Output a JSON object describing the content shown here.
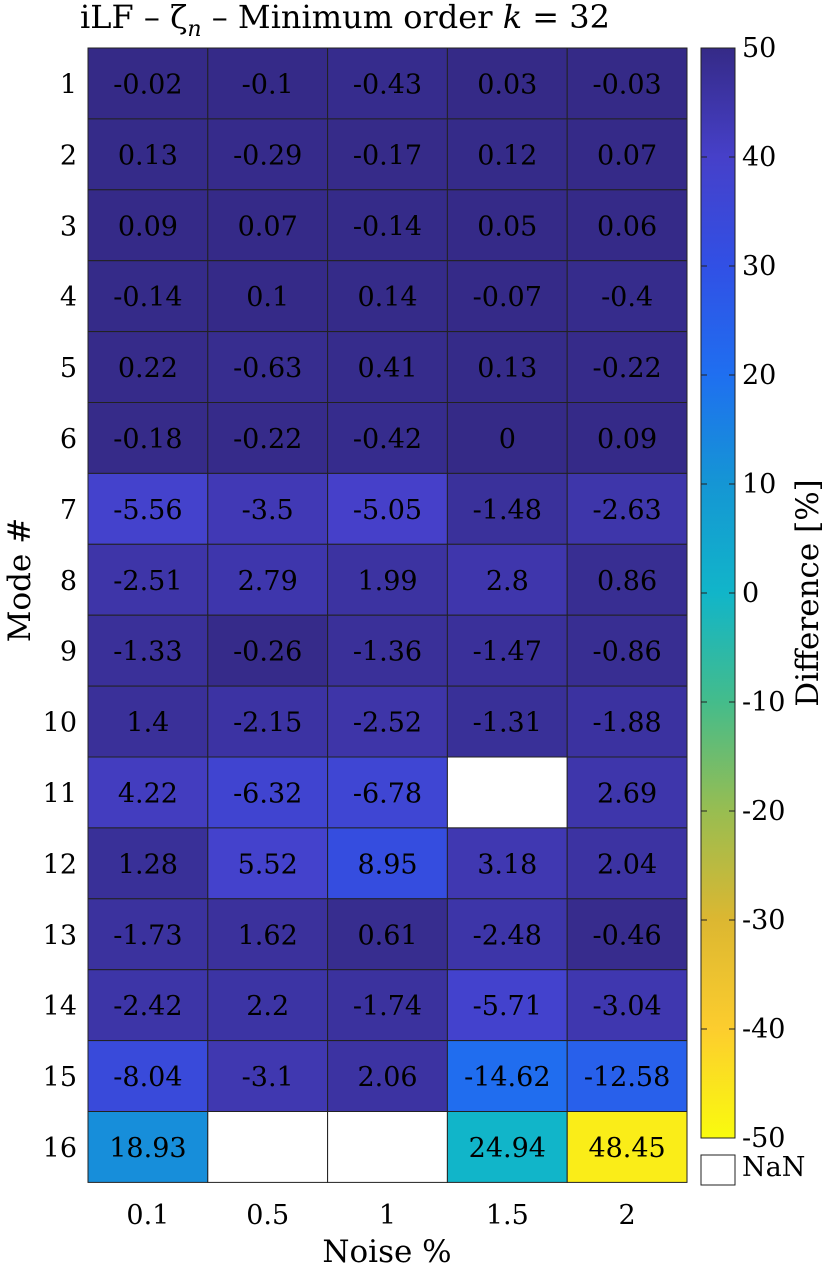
{
  "chart_data": {
    "type": "heatmap",
    "title": "iLF – ζ",
    "title_subscript": "n",
    "title_suffix": " – Minimum order ",
    "title_var": "k",
    "title_tail": " = 32",
    "xlabel": "Noise %",
    "ylabel": "Mode #",
    "x_categories": [
      "0.1",
      "0.5",
      "1",
      "1.5",
      "2"
    ],
    "y_categories": [
      "1",
      "2",
      "3",
      "4",
      "5",
      "6",
      "7",
      "8",
      "9",
      "10",
      "11",
      "12",
      "13",
      "14",
      "15",
      "16"
    ],
    "values": [
      [
        -0.02,
        -0.1,
        -0.43,
        0.03,
        -0.03
      ],
      [
        0.13,
        -0.29,
        -0.17,
        0.12,
        0.07
      ],
      [
        0.09,
        0.07,
        -0.14,
        0.05,
        0.06
      ],
      [
        -0.14,
        0.1,
        0.14,
        -0.07,
        -0.4
      ],
      [
        0.22,
        -0.63,
        0.41,
        0.13,
        -0.22
      ],
      [
        -0.18,
        -0.22,
        -0.42,
        0,
        0.09
      ],
      [
        -5.56,
        -3.5,
        -5.05,
        -1.48,
        -2.63
      ],
      [
        -2.51,
        2.79,
        1.99,
        2.8,
        0.86
      ],
      [
        -1.33,
        -0.26,
        -1.36,
        -1.47,
        -0.86
      ],
      [
        1.4,
        -2.15,
        -2.52,
        -1.31,
        -1.88
      ],
      [
        4.22,
        -6.32,
        -6.78,
        null,
        2.69
      ],
      [
        1.28,
        5.52,
        8.95,
        3.18,
        2.04
      ],
      [
        -1.73,
        1.62,
        0.61,
        -2.48,
        -0.46
      ],
      [
        -2.42,
        2.2,
        -1.74,
        -5.71,
        -3.04
      ],
      [
        -8.04,
        -3.1,
        2.06,
        -14.62,
        -12.58
      ],
      [
        18.93,
        null,
        null,
        24.94,
        48.45
      ]
    ],
    "colorbar": {
      "label": "Difference [%]",
      "ticks": [
        "50",
        "40",
        "30",
        "20",
        "10",
        "0",
        "-10",
        "-20",
        "-30",
        "-40",
        "-50"
      ],
      "nan_label": "NaN",
      "colors": {
        "low": "#352a87",
        "blue": "#1f6ff0",
        "cyan": "#11b5c9",
        "green": "#44bc8b",
        "yellow": "#f9fb0e",
        "grid": "#222222"
      }
    }
  }
}
